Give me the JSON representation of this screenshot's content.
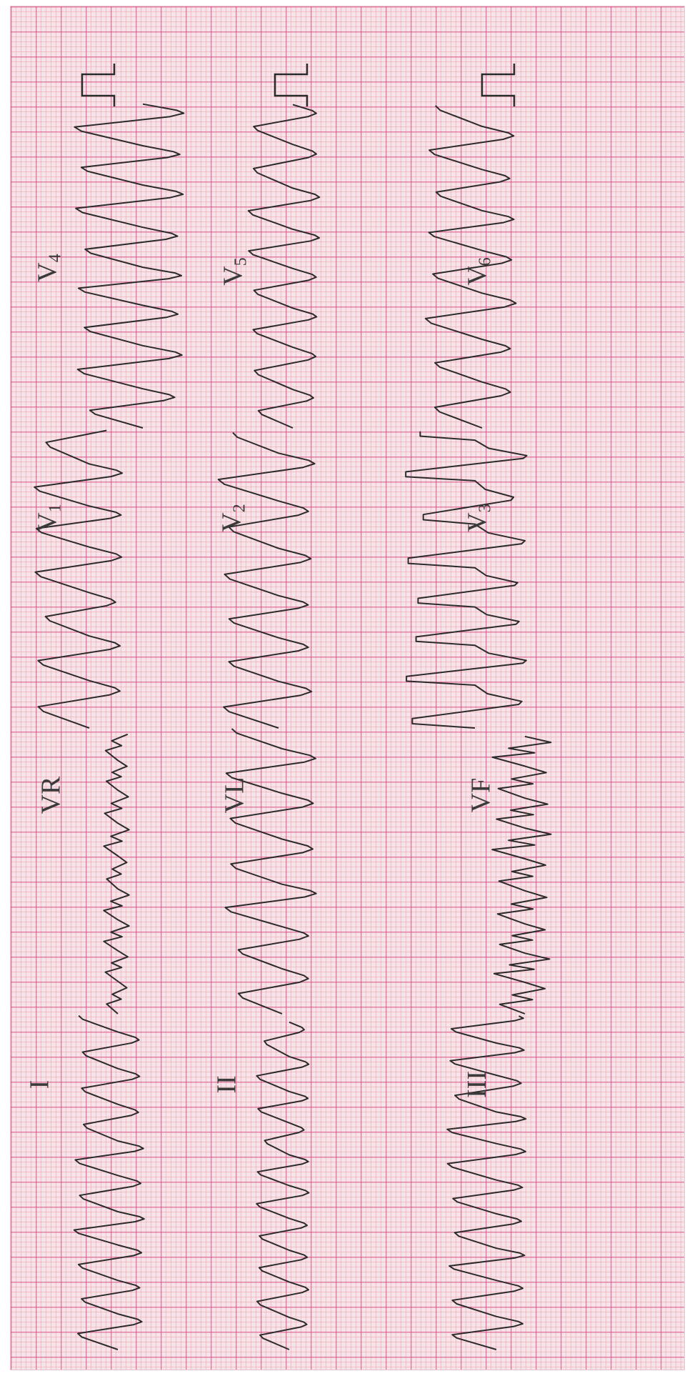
{
  "colors": {
    "paper": "#f7e4ea",
    "grid_major": "#d64682",
    "grid_minor": "#e89696",
    "trace": "#2b2b2b"
  },
  "leads": [
    {
      "name": "I",
      "label": "I",
      "sub": ""
    },
    {
      "name": "VR",
      "label": "VR",
      "sub": ""
    },
    {
      "name": "V1",
      "label": "V",
      "sub": "1"
    },
    {
      "name": "V4",
      "label": "V",
      "sub": "4"
    },
    {
      "name": "II",
      "label": "II",
      "sub": ""
    },
    {
      "name": "VL",
      "label": "VL",
      "sub": ""
    },
    {
      "name": "V2",
      "label": "V",
      "sub": "2"
    },
    {
      "name": "V5",
      "label": "V",
      "sub": "5"
    },
    {
      "name": "III",
      "label": "III",
      "sub": ""
    },
    {
      "name": "VF",
      "label": "VF",
      "sub": ""
    },
    {
      "name": "V3",
      "label": "V",
      "sub": "3"
    },
    {
      "name": "V6",
      "label": "V",
      "sub": "6"
    }
  ]
}
